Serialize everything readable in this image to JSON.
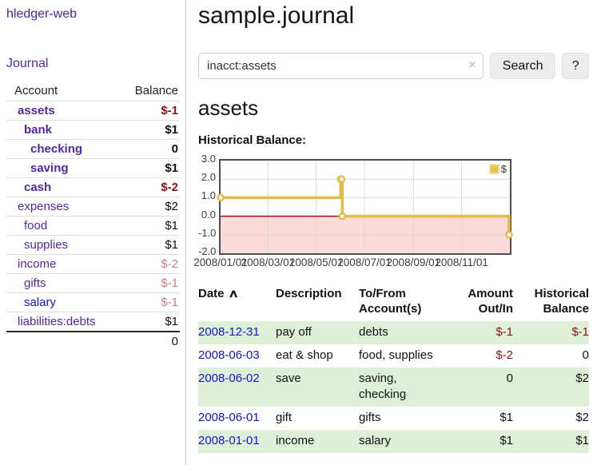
{
  "app": {
    "title": "hledger-web"
  },
  "sidebar": {
    "nav": {
      "journal": "Journal"
    },
    "columns": {
      "account": "Account",
      "balance": "Balance"
    },
    "accounts": [
      {
        "name": "assets",
        "level": 0,
        "bold": true,
        "link_color": "purple",
        "balance": "$-1",
        "balance_style": "neg-strong"
      },
      {
        "name": "bank",
        "level": 1,
        "bold": true,
        "link_color": "purple",
        "balance": "$1",
        "balance_style": "plain"
      },
      {
        "name": "checking",
        "level": 2,
        "bold": true,
        "link_color": "purple",
        "balance": "0",
        "balance_style": "plain"
      },
      {
        "name": "saving",
        "level": 2,
        "bold": true,
        "link_color": "purple",
        "balance": "$1",
        "balance_style": "plain"
      },
      {
        "name": "cash",
        "level": 1,
        "bold": true,
        "link_color": "purple",
        "balance": "$-2",
        "balance_style": "neg-strong"
      },
      {
        "name": "expenses",
        "level": 0,
        "bold": false,
        "link_color": "purple",
        "balance": "$2",
        "balance_style": "plain"
      },
      {
        "name": "food",
        "level": 1,
        "bold": false,
        "link_color": "purple",
        "balance": "$1",
        "balance_style": "plain"
      },
      {
        "name": "supplies",
        "level": 1,
        "bold": false,
        "link_color": "purple",
        "balance": "$1",
        "balance_style": "plain"
      },
      {
        "name": "income",
        "level": 0,
        "bold": false,
        "link_color": "purple",
        "balance": "$-2",
        "balance_style": "neg-soft"
      },
      {
        "name": "gifts",
        "level": 1,
        "bold": false,
        "link_color": "purple",
        "balance": "$-1",
        "balance_style": "neg-soft"
      },
      {
        "name": "salary",
        "level": 1,
        "bold": false,
        "link_color": "blue",
        "balance": "$-1",
        "balance_style": "neg-soft"
      },
      {
        "name": "liabilities:debts",
        "level": 0,
        "bold": false,
        "link_color": "purple",
        "balance": "$1",
        "balance_style": "plain"
      }
    ],
    "total": "0"
  },
  "main": {
    "title": "sample.journal",
    "search": {
      "value": "inacct:assets",
      "clear_icon": "×",
      "button_label": "Search",
      "help_label": "?"
    },
    "account_heading": "assets",
    "chart_label": "Historical Balance:"
  },
  "chart_data": {
    "type": "line",
    "title": "Historical Balance",
    "step": true,
    "series": [
      {
        "name": "$",
        "color": "#e2ba45",
        "points": [
          [
            "2008-01-01",
            1
          ],
          [
            "2008-06-01",
            2
          ],
          [
            "2008-06-02",
            2
          ],
          [
            "2008-06-03",
            0
          ],
          [
            "2008-12-31",
            -1
          ]
        ]
      }
    ],
    "x_range": [
      "2008-01-01",
      "2009-01-01"
    ],
    "x_ticks": [
      "2008/01/01",
      "2008/03/01",
      "2008/05/01",
      "2008/07/01",
      "2008/09/01",
      "2008/11/01"
    ],
    "y_ticks": [
      "3.0",
      "2.0",
      "1.0",
      "0.0",
      "-1.0",
      "-2.0"
    ],
    "ylim": [
      -2,
      3
    ],
    "grid": true,
    "grid_color": "#d9d9d9",
    "negative_region_color": "#fbdada",
    "zero_line_color": "#9e0e0e",
    "legend_position": "top-right",
    "legend_label": "$"
  },
  "register": {
    "headers": {
      "date": "Date",
      "sort_indicator": "∧",
      "description": "Description",
      "accounts": "To/From\nAccount(s)",
      "amount": "Amount\nOut/In",
      "balance": "Historical\nBalance"
    },
    "rows": [
      {
        "date": "2008-12-31",
        "description": "pay off",
        "accounts": "debts",
        "amount": "$-1",
        "amount_neg": true,
        "balance": "$-1",
        "balance_neg": true,
        "shaded": true
      },
      {
        "date": "2008-06-03",
        "description": "eat & shop",
        "accounts": "food, supplies",
        "amount": "$-2",
        "amount_neg": true,
        "balance": "0",
        "balance_neg": false,
        "shaded": false
      },
      {
        "date": "2008-06-02",
        "description": "save",
        "accounts": "saving,\nchecking",
        "amount": "0",
        "amount_neg": false,
        "balance": "$2",
        "balance_neg": false,
        "shaded": true
      },
      {
        "date": "2008-06-01",
        "description": "gift",
        "accounts": "gifts",
        "amount": "$1",
        "amount_neg": false,
        "balance": "$2",
        "balance_neg": false,
        "shaded": false
      },
      {
        "date": "2008-01-01",
        "description": "income",
        "accounts": "salary",
        "amount": "$1",
        "amount_neg": false,
        "balance": "$1",
        "balance_neg": false,
        "shaded": true
      }
    ]
  }
}
